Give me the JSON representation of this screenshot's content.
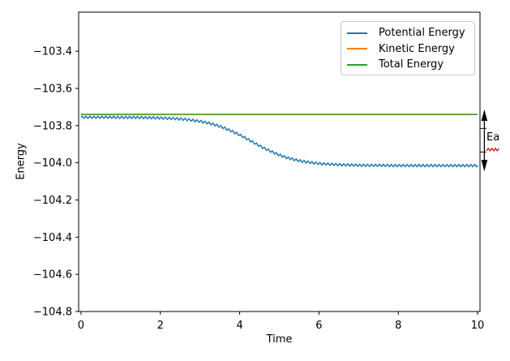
{
  "figure": {
    "background": "#ffffff"
  },
  "chart_data": {
    "type": "line",
    "title": "",
    "xlabel": "Time",
    "ylabel": "Energy",
    "xlim": [
      -0.06,
      10.06
    ],
    "ylim": [
      -104.8,
      -103.19
    ],
    "grid": false,
    "xticks": [
      0,
      2,
      4,
      6,
      8,
      10
    ],
    "xtick_labels": [
      "0",
      "2",
      "4",
      "6",
      "8",
      "10"
    ],
    "yticks": [
      -103.4,
      -103.6,
      -103.8,
      -104.0,
      -104.2,
      -104.4,
      -104.6,
      -104.8
    ],
    "ytick_labels": [
      "−103.4",
      "−103.6",
      "−103.8",
      "−104.0",
      "−104.2",
      "−104.4",
      "−104.6",
      "−104.8"
    ],
    "legend": {
      "location": "upper right",
      "border_color": "#c9c9c9"
    },
    "x": [
      0,
      0.2,
      0.4,
      0.6,
      0.8,
      1,
      1.2,
      1.4,
      1.6,
      1.8,
      2,
      2.2,
      2.4,
      2.6,
      2.8,
      3,
      3.2,
      3.4,
      3.6,
      3.8,
      4,
      4.2,
      4.4,
      4.6,
      4.8,
      5,
      5.2,
      5.4,
      5.6,
      5.8,
      6,
      6.2,
      6.4,
      6.6,
      6.8,
      7,
      7.2,
      7.4,
      7.6,
      7.8,
      8,
      8.2,
      8.4,
      8.6,
      8.8,
      9,
      9.2,
      9.4,
      9.6,
      9.8,
      10
    ],
    "series": [
      {
        "name": "Potential Energy",
        "color": "#1f77b4",
        "values": [
          -103.755,
          -103.755,
          -103.755,
          -103.755,
          -103.755,
          -103.756,
          -103.756,
          -103.756,
          -103.757,
          -103.758,
          -103.759,
          -103.761,
          -103.763,
          -103.766,
          -103.771,
          -103.777,
          -103.786,
          -103.797,
          -103.812,
          -103.83,
          -103.85,
          -103.873,
          -103.897,
          -103.92,
          -103.94,
          -103.958,
          -103.973,
          -103.984,
          -103.993,
          -103.999,
          -104.004,
          -104.007,
          -104.009,
          -104.011,
          -104.012,
          -104.013,
          -104.014,
          -104.014,
          -104.014,
          -104.015,
          -104.015,
          -104.015,
          -104.015,
          -104.015,
          -104.015,
          -104.015,
          -104.015,
          -104.015,
          -104.015,
          -104.015,
          -104.015
        ],
        "oscillation": {
          "amplitude": 0.006,
          "period": 0.1
        }
      },
      {
        "name": "Kinetic Energy",
        "color": "#ff7f0e",
        "constant": -103.74
      },
      {
        "name": "Total Energy",
        "color": "#2ca02c",
        "constant": -103.74
      }
    ],
    "annotation": {
      "label": "Ea",
      "x": 10.17,
      "from_value": -103.74,
      "to_value": -104.015,
      "arrow_color": "#000000",
      "underline_color": "#d40000"
    }
  }
}
